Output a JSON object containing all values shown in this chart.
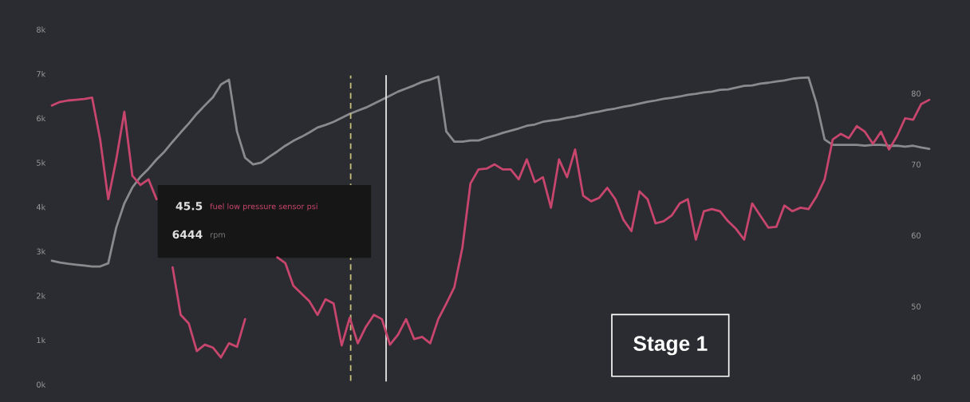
{
  "chart_data": {
    "type": "line",
    "categories": [
      null,
      null,
      null,
      null,
      null,
      null,
      null,
      null,
      null,
      null,
      null,
      null,
      null,
      null,
      null,
      null,
      null,
      null,
      null,
      null,
      null,
      null,
      null,
      null,
      null,
      null,
      null,
      null,
      null,
      null,
      null,
      null,
      null,
      null,
      null,
      null,
      null,
      null,
      null,
      null,
      null,
      null,
      null,
      null,
      null,
      null,
      null,
      null,
      null,
      null,
      null,
      null,
      null,
      null,
      null,
      null,
      null,
      null,
      null,
      null,
      null,
      null,
      null,
      null,
      null,
      null,
      null,
      null,
      null,
      null,
      null,
      null,
      null,
      null,
      null,
      null,
      null,
      null,
      null,
      null,
      null,
      null,
      null,
      null,
      null,
      null,
      null,
      null,
      null,
      null,
      null,
      null,
      null,
      null,
      null,
      null,
      null,
      null,
      null,
      null,
      null,
      null,
      null,
      null,
      null,
      null,
      null,
      null,
      null,
      null
    ],
    "series": [
      {
        "name": "fuel low pressure sensor psi",
        "color": "#c8466e",
        "axis": "y2",
        "values": [
          78.3,
          78.8,
          79.0,
          79.1,
          79.2,
          79.4,
          73.5,
          65.1,
          70.7,
          77.4,
          68.4,
          67.1,
          67.9,
          65.1,
          null,
          55.5,
          48.8,
          47.6,
          43.7,
          44.6,
          44.2,
          42.8,
          44.8,
          44.3,
          48.2,
          null,
          null,
          null,
          56.9,
          56.1,
          52.9,
          51.8,
          50.7,
          48.8,
          51.0,
          50.4,
          44.5,
          48.4,
          44.8,
          47.1,
          48.8,
          48.2,
          44.6,
          46.0,
          48.2,
          45.4,
          45.7,
          44.8,
          48.2,
          50.4,
          52.7,
          58.3,
          67.3,
          69.3,
          69.4,
          70.0,
          69.3,
          69.3,
          67.9,
          70.7,
          67.5,
          68.2,
          63.9,
          70.7,
          68.2,
          72.1,
          65.6,
          64.8,
          65.3,
          66.7,
          65.1,
          62.2,
          60.6,
          66.2,
          65.1,
          61.7,
          62.0,
          62.8,
          64.5,
          65.1,
          59.4,
          63.4,
          63.7,
          63.4,
          62.0,
          60.9,
          59.4,
          64.5,
          62.8,
          61.1,
          61.2,
          64.2,
          63.4,
          63.9,
          63.7,
          65.5,
          67.9,
          73.5,
          74.3,
          73.7,
          75.4,
          74.6,
          72.9,
          74.6,
          72.1,
          74.0,
          76.5,
          76.3,
          78.5,
          79.1
        ]
      },
      {
        "name": "rpm",
        "color": "#8a8a8e",
        "axis": "y",
        "values": [
          2790,
          2750,
          2720,
          2700,
          2680,
          2660,
          2660,
          2730,
          3540,
          4080,
          4440,
          4680,
          4860,
          5070,
          5250,
          5470,
          5680,
          5880,
          6100,
          6290,
          6470,
          6760,
          6870,
          5700,
          5110,
          4960,
          5000,
          5130,
          5250,
          5380,
          5490,
          5580,
          5680,
          5790,
          5850,
          5920,
          6010,
          6100,
          6170,
          6240,
          6330,
          6420,
          6510,
          6600,
          6670,
          6740,
          6820,
          6870,
          6940,
          5700,
          5470,
          5470,
          5500,
          5500,
          5560,
          5610,
          5670,
          5720,
          5770,
          5830,
          5860,
          5920,
          5950,
          5970,
          6010,
          6040,
          6080,
          6120,
          6150,
          6190,
          6220,
          6260,
          6290,
          6330,
          6370,
          6400,
          6440,
          6460,
          6490,
          6530,
          6550,
          6580,
          6600,
          6640,
          6650,
          6690,
          6730,
          6740,
          6780,
          6800,
          6830,
          6850,
          6890,
          6910,
          6920,
          6330,
          5520,
          5400,
          5400,
          5400,
          5400,
          5380,
          5400,
          5400,
          5380,
          5380,
          5360,
          5380,
          5340,
          5310
        ]
      }
    ],
    "ylim": [
      0,
      8000
    ],
    "yticks": [
      {
        "value": 0,
        "label": "0k"
      },
      {
        "value": 1000,
        "label": "1k"
      },
      {
        "value": 2000,
        "label": "2k"
      },
      {
        "value": 3000,
        "label": "3k"
      },
      {
        "value": 4000,
        "label": "4k"
      },
      {
        "value": 5000,
        "label": "5k"
      },
      {
        "value": 6000,
        "label": "6k"
      },
      {
        "value": 7000,
        "label": "7k"
      },
      {
        "value": 8000,
        "label": "8k"
      }
    ],
    "y2lim": [
      39,
      89
    ],
    "y2ticks": [
      40,
      50,
      60,
      70,
      80
    ],
    "annotations": [
      "45.5",
      "6444",
      "Stage 1"
    ],
    "grid": false,
    "legend": false,
    "marker": "none",
    "line_style": "solid"
  }
}
